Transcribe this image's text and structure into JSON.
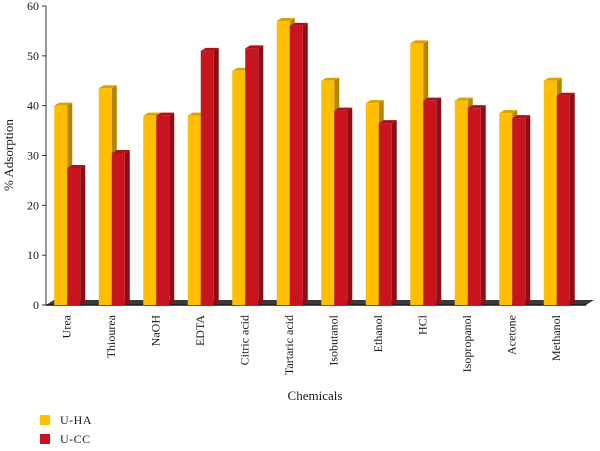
{
  "chart_data": {
    "type": "bar",
    "title": "",
    "xlabel": "Chemicals",
    "ylabel": "% Adsorption",
    "ylim": [
      0,
      60
    ],
    "yticks": [
      0,
      10,
      20,
      30,
      40,
      50,
      60
    ],
    "grid": false,
    "legend_position": "bottom-left",
    "categories": [
      "Urea",
      "Thiourea",
      "NaOH",
      "EDTA",
      "Citric acid",
      "Tartaric acid",
      "Isobutanol",
      "Ethanol",
      "HCl",
      "Isopropanol",
      "Acetone",
      "Methanol"
    ],
    "series": [
      {
        "name": "U-HA",
        "color": "#ffbe00",
        "values": [
          40,
          43.5,
          38,
          38,
          47,
          57,
          45,
          40.5,
          52.5,
          41,
          38.5,
          45
        ]
      },
      {
        "name": "U-CC",
        "color": "#c8141e",
        "values": [
          27.5,
          30.5,
          38,
          51,
          51.5,
          56,
          39,
          36.5,
          41,
          39.5,
          37.5,
          42
        ]
      }
    ]
  }
}
